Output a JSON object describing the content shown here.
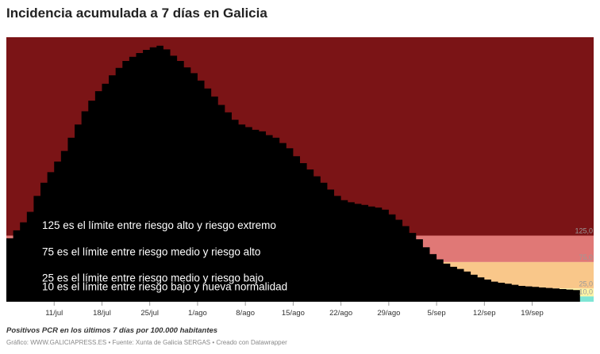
{
  "title": "Incidencia acumulada a 7 días en Galicia",
  "note": "Positivos PCR en los últimos 7 días por 100.000 habitantes",
  "credits": "Gráfico: WWW.GALICIAPRESS.ES • Fuente: Xunta de Galicia SERGAS • Creado con Datawrapper",
  "colors": {
    "extreme": "#7b1416",
    "high": "#e07876",
    "medium": "#f9c78a",
    "low": "#fdf5a6",
    "new_normal": "#7ee5d4",
    "area": "#000000"
  },
  "chart_data": {
    "type": "area",
    "step": true,
    "ylim": [
      0,
      500
    ],
    "xlim": [
      "2021-07-04",
      "2021-09-28"
    ],
    "x_ticks": [
      "11/jul",
      "18/jul",
      "25/jul",
      "1/ago",
      "8/ago",
      "15/ago",
      "22/ago",
      "29/ago",
      "5/sep",
      "12/sep",
      "19/sep"
    ],
    "x_tick_dates": [
      "2021-07-11",
      "2021-07-18",
      "2021-07-25",
      "2021-08-01",
      "2021-08-08",
      "2021-08-15",
      "2021-08-22",
      "2021-08-29",
      "2021-09-05",
      "2021-09-12",
      "2021-09-19"
    ],
    "bands": [
      {
        "from": 125,
        "to": 500,
        "color": "extreme"
      },
      {
        "from": 75,
        "to": 125,
        "color": "high",
        "label": "125,0"
      },
      {
        "from": 25,
        "to": 75,
        "color": "medium",
        "label": "75,0"
      },
      {
        "from": 10,
        "to": 25,
        "color": "low",
        "label": "25,0"
      },
      {
        "from": 0,
        "to": 10,
        "color": "new_normal",
        "label": "10,0"
      }
    ],
    "annotations": [
      {
        "text": "125 es el límite entre riesgo alto y riesgo extremo",
        "date": "2021-07-09",
        "y": 127
      },
      {
        "text": "75 es el límite entre riesgo medio y riesgo alto",
        "date": "2021-07-09",
        "y": 77
      },
      {
        "text": "25 es el límite entre riesgo medio y riesgo bajo",
        "date": "2021-07-09",
        "y": 28
      },
      {
        "text": "10 es el límite entre riesgo bajo y nueva normalidad",
        "date": "2021-07-09",
        "y": 11
      }
    ],
    "series": [
      {
        "x": [
          "2021-07-04",
          "2021-07-05",
          "2021-07-06",
          "2021-07-07",
          "2021-07-08",
          "2021-07-09",
          "2021-07-10",
          "2021-07-11",
          "2021-07-12",
          "2021-07-13",
          "2021-07-14",
          "2021-07-15",
          "2021-07-16",
          "2021-07-17",
          "2021-07-18",
          "2021-07-19",
          "2021-07-20",
          "2021-07-21",
          "2021-07-22",
          "2021-07-23",
          "2021-07-24",
          "2021-07-25",
          "2021-07-26",
          "2021-07-27",
          "2021-07-28",
          "2021-07-29",
          "2021-07-30",
          "2021-07-31",
          "2021-08-01",
          "2021-08-02",
          "2021-08-03",
          "2021-08-04",
          "2021-08-05",
          "2021-08-06",
          "2021-08-07",
          "2021-08-08",
          "2021-08-09",
          "2021-08-10",
          "2021-08-11",
          "2021-08-12",
          "2021-08-13",
          "2021-08-14",
          "2021-08-15",
          "2021-08-16",
          "2021-08-17",
          "2021-08-18",
          "2021-08-19",
          "2021-08-20",
          "2021-08-21",
          "2021-08-22",
          "2021-08-23",
          "2021-08-24",
          "2021-08-25",
          "2021-08-26",
          "2021-08-27",
          "2021-08-28",
          "2021-08-29",
          "2021-08-30",
          "2021-08-31",
          "2021-09-01",
          "2021-09-02",
          "2021-09-03",
          "2021-09-04",
          "2021-09-05",
          "2021-09-06",
          "2021-09-07",
          "2021-09-08",
          "2021-09-09",
          "2021-09-10",
          "2021-09-11",
          "2021-09-12",
          "2021-09-13",
          "2021-09-14",
          "2021-09-15",
          "2021-09-16",
          "2021-09-17",
          "2021-09-18",
          "2021-09-19",
          "2021-09-20",
          "2021-09-21",
          "2021-09-22",
          "2021-09-23",
          "2021-09-24",
          "2021-09-25"
        ],
        "values": [
          120,
          135,
          150,
          170,
          200,
          225,
          245,
          265,
          285,
          310,
          335,
          360,
          380,
          398,
          412,
          428,
          442,
          455,
          463,
          470,
          476,
          481,
          484,
          477,
          465,
          455,
          443,
          432,
          418,
          403,
          388,
          372,
          358,
          344,
          335,
          330,
          325,
          322,
          315,
          310,
          300,
          290,
          275,
          262,
          250,
          237,
          225,
          212,
          200,
          192,
          188,
          185,
          183,
          180,
          178,
          174,
          165,
          155,
          143,
          130,
          118,
          103,
          90,
          80,
          72,
          66,
          62,
          57,
          51,
          46,
          42,
          38,
          36,
          34,
          32,
          30,
          29,
          28,
          27,
          26,
          25,
          24,
          23,
          22
        ]
      }
    ]
  }
}
